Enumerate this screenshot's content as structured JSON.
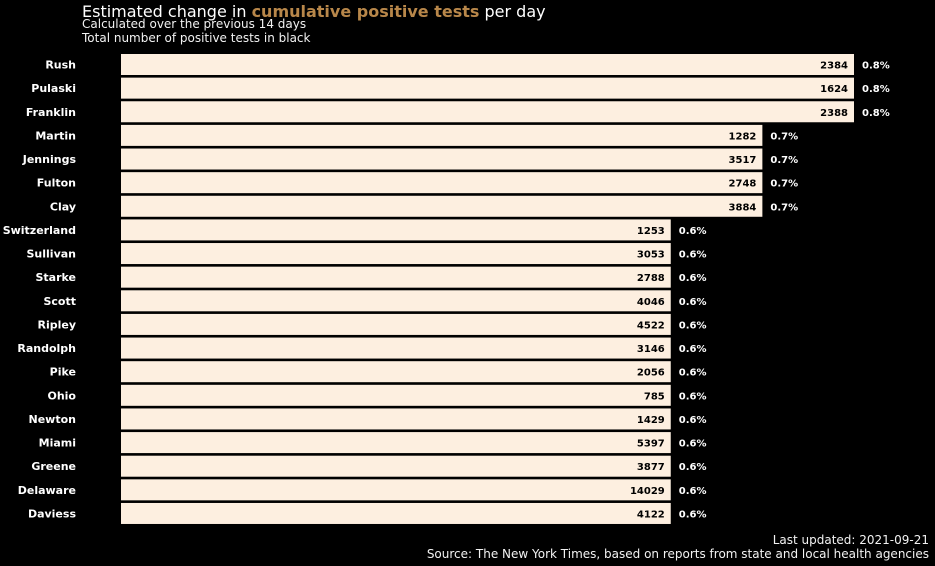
{
  "header": {
    "title_pre": "Estimated change in ",
    "title_highlight": "cumulative positive tests",
    "title_post": " per day",
    "subtitle1": "Calculated over the previous 14 days",
    "subtitle2": "Total number of positive tests in black"
  },
  "footer": {
    "updated": "Last updated: 2021-09-21",
    "source": "Source: The New York Times, based on reports from state and local health agencies"
  },
  "colors": {
    "background": "#000000",
    "bar_fill": "#fdefe0",
    "highlight": "#b8874a",
    "text": "#ffffff",
    "count_text": "#000000"
  },
  "chart_data": {
    "type": "bar",
    "orientation": "horizontal",
    "categories": [
      "Rush",
      "Pulaski",
      "Franklin",
      "Martin",
      "Jennings",
      "Fulton",
      "Clay",
      "Switzerland",
      "Sullivan",
      "Starke",
      "Scott",
      "Ripley",
      "Randolph",
      "Pike",
      "Ohio",
      "Newton",
      "Miami",
      "Greene",
      "Delaware",
      "Daviess"
    ],
    "values": [
      0.8,
      0.8,
      0.8,
      0.7,
      0.7,
      0.7,
      0.7,
      0.6,
      0.6,
      0.6,
      0.6,
      0.6,
      0.6,
      0.6,
      0.6,
      0.6,
      0.6,
      0.6,
      0.6,
      0.6
    ],
    "value_labels": [
      "0.8%",
      "0.8%",
      "0.8%",
      "0.7%",
      "0.7%",
      "0.7%",
      "0.7%",
      "0.6%",
      "0.6%",
      "0.6%",
      "0.6%",
      "0.6%",
      "0.6%",
      "0.6%",
      "0.6%",
      "0.6%",
      "0.6%",
      "0.6%",
      "0.6%",
      "0.6%"
    ],
    "totals": [
      2384,
      1624,
      2388,
      1282,
      3517,
      2748,
      3884,
      1253,
      3053,
      2788,
      4046,
      4522,
      3146,
      2056,
      785,
      1429,
      5397,
      3877,
      14029,
      4122
    ],
    "xlim": [
      0,
      0.8
    ],
    "grid": false,
    "legend": "none"
  }
}
